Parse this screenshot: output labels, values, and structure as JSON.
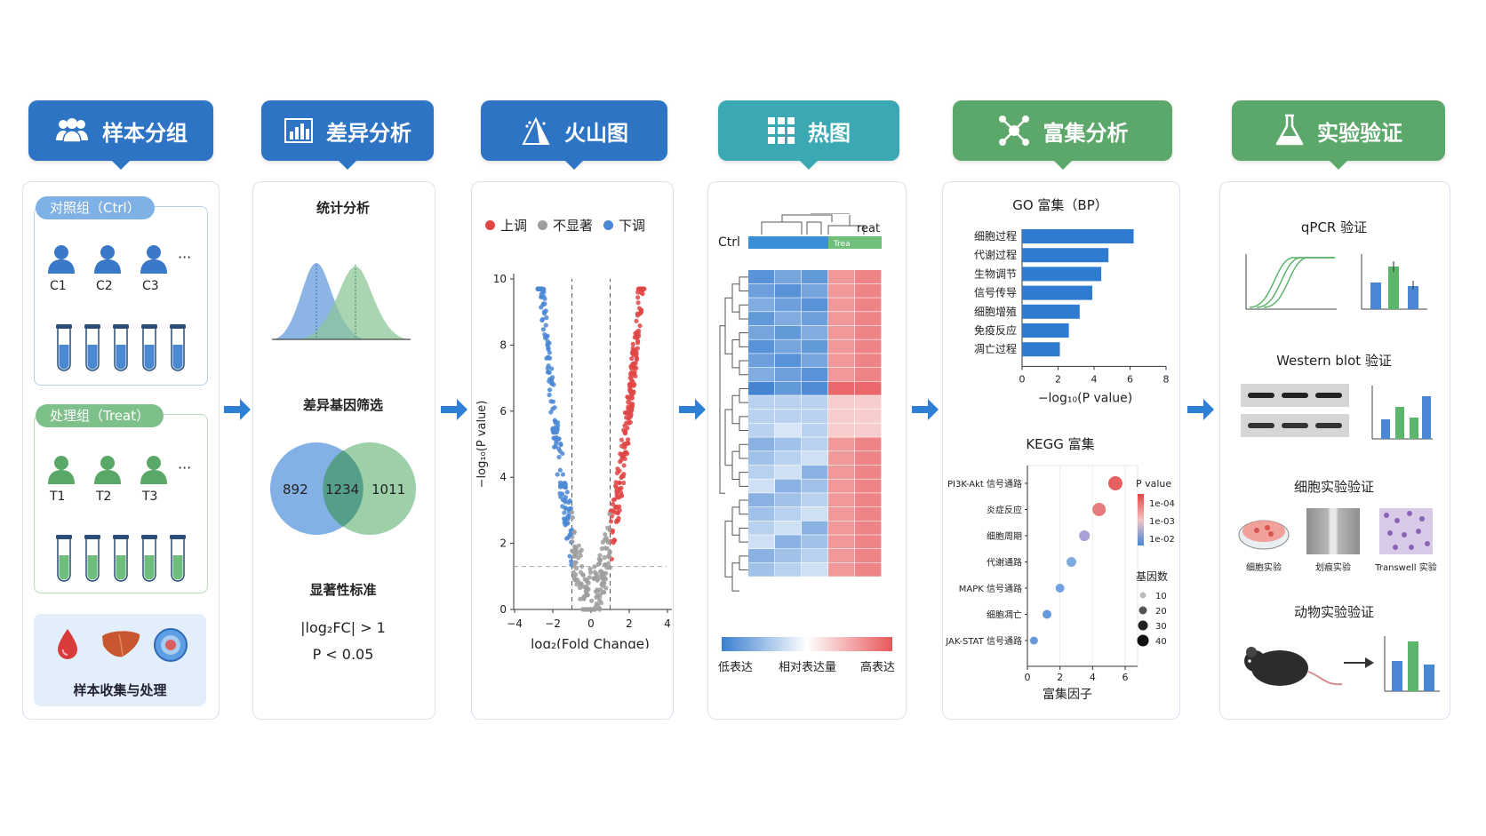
{
  "headers": [
    {
      "label": "样本分组",
      "color": "#2e74c4",
      "icon": "people-icon"
    },
    {
      "label": "差异分析",
      "color": "#2e74c4",
      "icon": "bar-chart-icon"
    },
    {
      "label": "火山图",
      "color": "#2e74c4",
      "icon": "volcano-icon"
    },
    {
      "label": "热图",
      "color": "#3aa9b4",
      "icon": "grid-icon"
    },
    {
      "label": "富集分析",
      "color": "#5ba86a",
      "icon": "network-icon"
    },
    {
      "label": "实验验证",
      "color": "#5ba86a",
      "icon": "flask-icon"
    }
  ],
  "groups": {
    "ctrl": {
      "label": "对照组（Ctrl）",
      "members": [
        "C1",
        "C2",
        "C3"
      ],
      "more": "···"
    },
    "treat": {
      "label": "处理组（Treat）",
      "members": [
        "T1",
        "T2",
        "T3"
      ],
      "more": "···"
    },
    "collection": "样本收集与处理"
  },
  "diff": {
    "stat_title": "统计分析",
    "screen_title": "差异基因筛选",
    "venn": {
      "left": "892",
      "middle": "1234",
      "right": "1011"
    },
    "criteria_title": "显著性标准",
    "criteria_fc": "|log₂FC| > 1",
    "criteria_p": "P < 0.05"
  },
  "volcano": {
    "legend": [
      {
        "label": "上调",
        "color": "#e04545"
      },
      {
        "label": "不显著",
        "color": "#9e9e9e"
      },
      {
        "label": "下调",
        "color": "#4a87d4"
      }
    ],
    "yticks": [
      "0",
      "2",
      "4",
      "6",
      "8",
      "10"
    ],
    "xticks": [
      "−4",
      "−2",
      "0",
      "2",
      "4"
    ],
    "ylabel": "−log₁₀(P value)",
    "xlabel": "log₂(Fold Change)"
  },
  "heatmap": {
    "ctrl_label": "Ctrl",
    "treat_label": "reat",
    "treat_tag": "Trea",
    "scale_low": "低表达",
    "scale_mid": "相对表达量",
    "scale_high": "高表达",
    "colors": {
      "low": "#3b7fd0",
      "mid": "#ffffff",
      "high": "#e8575a"
    }
  },
  "enrichment": {
    "go_title": "GO 富集（BP）",
    "go_terms": [
      "细胞过程",
      "代谢过程",
      "生物调节",
      "信号传导",
      "细胞增殖",
      "免疫反应",
      "凋亡过程"
    ],
    "go_values": [
      6.2,
      4.8,
      4.4,
      3.9,
      3.2,
      2.6,
      2.1
    ],
    "go_xticks": [
      "0",
      "2",
      "4",
      "6",
      "8"
    ],
    "go_xlabel": "−log₁₀(P value)",
    "kegg_title": "KEGG 富集",
    "kegg_terms": [
      "PI3K-Akt 信号通路",
      "炎症反应",
      "细胞周期",
      "代谢通路",
      "MAPK 信号通路",
      "细胞凋亡",
      "JAK-STAT 信号通路"
    ],
    "kegg_values": [
      5.4,
      4.4,
      3.5,
      2.7,
      2.0,
      1.2,
      0.4
    ],
    "kegg_xticks": [
      "0",
      "2",
      "4",
      "6"
    ],
    "kegg_xlabel": "富集因子",
    "pvalue_title": "P value",
    "pvalue_ticks": [
      "1e-04",
      "1e-03",
      "1e-02"
    ],
    "count_title": "基因数",
    "count_ticks": [
      "10",
      "20",
      "30",
      "40"
    ]
  },
  "validation": {
    "qpcr_title": "qPCR 验证",
    "wb_title": "Western blot 验证",
    "cell_title": "细胞实验验证",
    "cell_items": [
      "细胞实验",
      "划痕实验",
      "Transwell 实验"
    ],
    "animal_title": "动物实验验证"
  }
}
